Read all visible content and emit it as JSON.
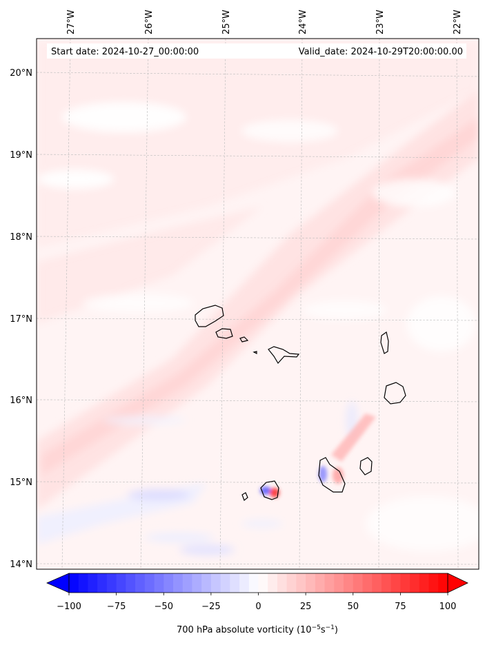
{
  "header": {
    "start_date": "Start date: 2024-10-27_00:00:00",
    "valid_date": "Valid_date: 2024-10-29T20:00:00.00"
  },
  "axes": {
    "lon_labels": [
      "27°W",
      "26°W",
      "25°W",
      "24°W",
      "23°W",
      "22°W"
    ],
    "lat_labels": [
      "20°N",
      "19°N",
      "18°N",
      "17°N",
      "16°N",
      "15°N",
      "14°N"
    ],
    "gridlines": true
  },
  "colorbar": {
    "label_main": "700 hPa absolute vorticity (10",
    "label_exp1": "−5",
    "label_mid": "s",
    "label_exp2": "−1",
    "label_end": ")",
    "ticks": [
      "−100",
      "−75",
      "−50",
      "−25",
      "0",
      "25",
      "50",
      "75",
      "100"
    ],
    "min": -100,
    "max": 100,
    "extend": "both",
    "colormap": "bwr",
    "color_low": "#0000ff",
    "color_mid": "#ffffff",
    "color_high": "#ff0000"
  }
}
